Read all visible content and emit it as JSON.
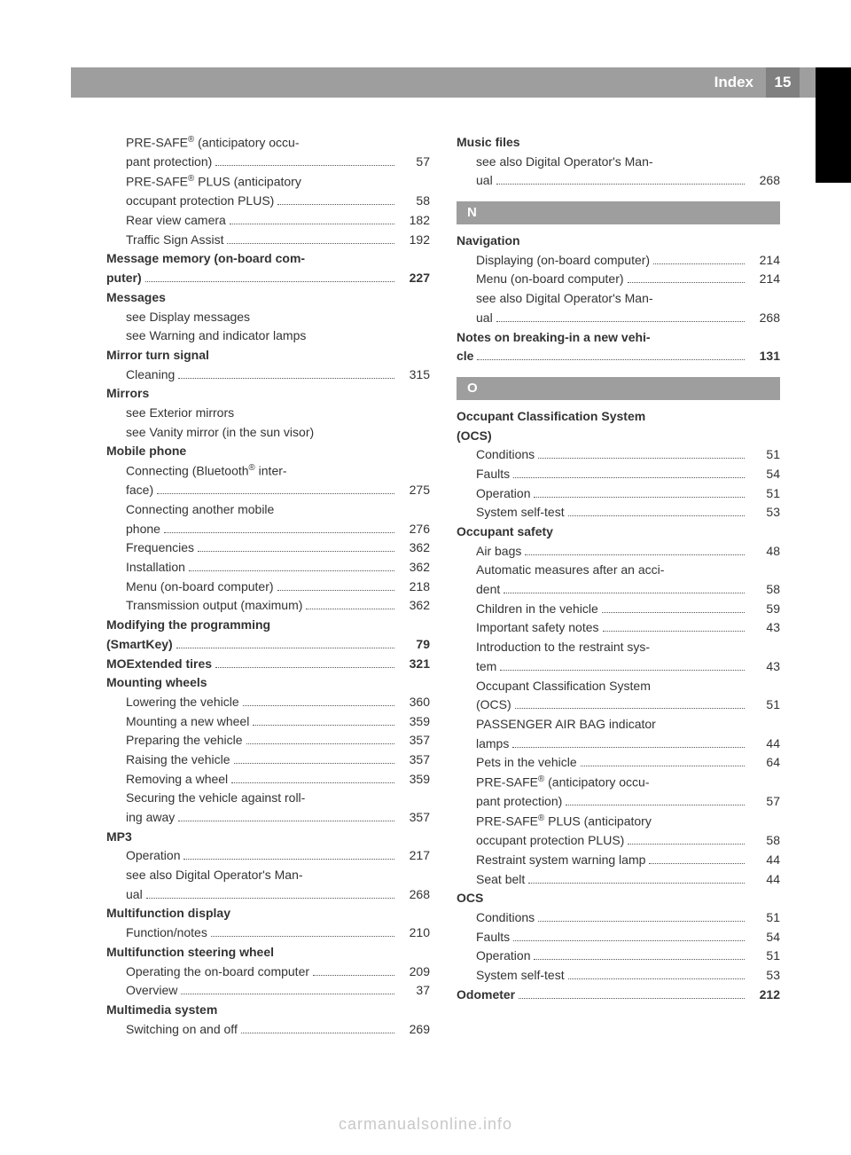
{
  "header": {
    "title": "Index",
    "page": "15"
  },
  "footer": "carmanualsonline.info",
  "left": [
    {
      "type": "entry",
      "indent": 1,
      "bold": false,
      "label": "PRE-SAFE® (anticipatory occu-"
    },
    {
      "type": "entry",
      "indent": 1,
      "bold": false,
      "label": "pant protection)",
      "page": "57"
    },
    {
      "type": "entry",
      "indent": 1,
      "bold": false,
      "label": "PRE-SAFE® PLUS (anticipatory"
    },
    {
      "type": "entry",
      "indent": 1,
      "bold": false,
      "label": "occupant protection PLUS)",
      "page": "58"
    },
    {
      "type": "entry",
      "indent": 1,
      "bold": false,
      "label": "Rear view camera",
      "page": "182"
    },
    {
      "type": "entry",
      "indent": 1,
      "bold": false,
      "label": "Traffic Sign Assist",
      "page": "192"
    },
    {
      "type": "entry",
      "indent": 0,
      "bold": true,
      "label": "Message memory (on-board com-"
    },
    {
      "type": "entry",
      "indent": 0,
      "bold": true,
      "label": "puter)",
      "page": "227"
    },
    {
      "type": "entry",
      "indent": 0,
      "bold": true,
      "label": "Messages"
    },
    {
      "type": "plain",
      "indent": 1,
      "label": "see Display messages"
    },
    {
      "type": "plain",
      "indent": 1,
      "label": "see Warning and indicator lamps"
    },
    {
      "type": "entry",
      "indent": 0,
      "bold": true,
      "label": "Mirror turn signal"
    },
    {
      "type": "entry",
      "indent": 1,
      "bold": false,
      "label": "Cleaning",
      "page": "315"
    },
    {
      "type": "entry",
      "indent": 0,
      "bold": true,
      "label": "Mirrors"
    },
    {
      "type": "plain",
      "indent": 1,
      "label": "see Exterior mirrors"
    },
    {
      "type": "plain",
      "indent": 1,
      "label": "see Vanity mirror (in the sun visor)"
    },
    {
      "type": "entry",
      "indent": 0,
      "bold": true,
      "label": "Mobile phone"
    },
    {
      "type": "entry",
      "indent": 1,
      "bold": false,
      "label": "Connecting (Bluetooth® inter-"
    },
    {
      "type": "entry",
      "indent": 1,
      "bold": false,
      "label": "face)",
      "page": "275"
    },
    {
      "type": "entry",
      "indent": 1,
      "bold": false,
      "label": "Connecting another mobile"
    },
    {
      "type": "entry",
      "indent": 1,
      "bold": false,
      "label": "phone",
      "page": "276"
    },
    {
      "type": "entry",
      "indent": 1,
      "bold": false,
      "label": "Frequencies",
      "page": "362"
    },
    {
      "type": "entry",
      "indent": 1,
      "bold": false,
      "label": "Installation",
      "page": "362"
    },
    {
      "type": "entry",
      "indent": 1,
      "bold": false,
      "label": "Menu (on-board computer)",
      "page": "218"
    },
    {
      "type": "entry",
      "indent": 1,
      "bold": false,
      "label": "Transmission output (maximum)",
      "page": "362"
    },
    {
      "type": "entry",
      "indent": 0,
      "bold": true,
      "label": "Modifying the programming"
    },
    {
      "type": "entry",
      "indent": 0,
      "bold": true,
      "label": "(SmartKey)",
      "page": "79"
    },
    {
      "type": "entry",
      "indent": 0,
      "bold": true,
      "label": "MOExtended tires",
      "page": "321"
    },
    {
      "type": "entry",
      "indent": 0,
      "bold": true,
      "label": "Mounting wheels"
    },
    {
      "type": "entry",
      "indent": 1,
      "bold": false,
      "label": "Lowering the vehicle",
      "page": "360"
    },
    {
      "type": "entry",
      "indent": 1,
      "bold": false,
      "label": "Mounting a new wheel",
      "page": "359"
    },
    {
      "type": "entry",
      "indent": 1,
      "bold": false,
      "label": "Preparing the vehicle",
      "page": "357"
    },
    {
      "type": "entry",
      "indent": 1,
      "bold": false,
      "label": "Raising the vehicle",
      "page": "357"
    },
    {
      "type": "entry",
      "indent": 1,
      "bold": false,
      "label": "Removing a wheel",
      "page": "359"
    },
    {
      "type": "entry",
      "indent": 1,
      "bold": false,
      "label": "Securing the vehicle against roll-"
    },
    {
      "type": "entry",
      "indent": 1,
      "bold": false,
      "label": "ing away",
      "page": "357"
    },
    {
      "type": "entry",
      "indent": 0,
      "bold": true,
      "label": "MP3"
    },
    {
      "type": "entry",
      "indent": 1,
      "bold": false,
      "label": "Operation",
      "page": "217"
    },
    {
      "type": "entry",
      "indent": 1,
      "bold": false,
      "label": "see also Digital Operator's Man-"
    },
    {
      "type": "entry",
      "indent": 1,
      "bold": false,
      "label": "ual",
      "page": "268"
    },
    {
      "type": "entry",
      "indent": 0,
      "bold": true,
      "label": "Multifunction display"
    },
    {
      "type": "entry",
      "indent": 1,
      "bold": false,
      "label": "Function/notes",
      "page": "210"
    },
    {
      "type": "entry",
      "indent": 0,
      "bold": true,
      "label": "Multifunction steering wheel"
    },
    {
      "type": "entry",
      "indent": 1,
      "bold": false,
      "label": "Operating the on-board computer",
      "page": "209"
    },
    {
      "type": "entry",
      "indent": 1,
      "bold": false,
      "label": "Overview",
      "page": "37"
    },
    {
      "type": "entry",
      "indent": 0,
      "bold": true,
      "label": "Multimedia system"
    },
    {
      "type": "entry",
      "indent": 1,
      "bold": false,
      "label": "Switching on and off",
      "page": "269"
    }
  ],
  "right": [
    {
      "type": "entry",
      "indent": 0,
      "bold": true,
      "label": "Music files"
    },
    {
      "type": "entry",
      "indent": 1,
      "bold": false,
      "label": "see also Digital Operator's Man-"
    },
    {
      "type": "entry",
      "indent": 1,
      "bold": false,
      "label": "ual",
      "page": "268"
    },
    {
      "type": "section",
      "label": "N"
    },
    {
      "type": "entry",
      "indent": 0,
      "bold": true,
      "label": "Navigation"
    },
    {
      "type": "entry",
      "indent": 1,
      "bold": false,
      "label": "Displaying (on-board computer)",
      "page": "214"
    },
    {
      "type": "entry",
      "indent": 1,
      "bold": false,
      "label": "Menu (on-board computer)",
      "page": "214"
    },
    {
      "type": "entry",
      "indent": 1,
      "bold": false,
      "label": "see also Digital Operator's Man-"
    },
    {
      "type": "entry",
      "indent": 1,
      "bold": false,
      "label": "ual",
      "page": "268"
    },
    {
      "type": "entry",
      "indent": 0,
      "bold": true,
      "label": "Notes on breaking-in a new vehi-"
    },
    {
      "type": "entry",
      "indent": 0,
      "bold": true,
      "label": "cle",
      "page": "131"
    },
    {
      "type": "section",
      "label": "O"
    },
    {
      "type": "entry",
      "indent": 0,
      "bold": true,
      "label": "Occupant Classification System"
    },
    {
      "type": "entry",
      "indent": 0,
      "bold": true,
      "label": "(OCS)"
    },
    {
      "type": "entry",
      "indent": 1,
      "bold": false,
      "label": "Conditions",
      "page": "51"
    },
    {
      "type": "entry",
      "indent": 1,
      "bold": false,
      "label": "Faults",
      "page": "54"
    },
    {
      "type": "entry",
      "indent": 1,
      "bold": false,
      "label": "Operation",
      "page": "51"
    },
    {
      "type": "entry",
      "indent": 1,
      "bold": false,
      "label": "System self-test",
      "page": "53"
    },
    {
      "type": "entry",
      "indent": 0,
      "bold": true,
      "label": "Occupant safety"
    },
    {
      "type": "entry",
      "indent": 1,
      "bold": false,
      "label": "Air bags",
      "page": "48"
    },
    {
      "type": "entry",
      "indent": 1,
      "bold": false,
      "label": "Automatic measures after an acci-"
    },
    {
      "type": "entry",
      "indent": 1,
      "bold": false,
      "label": "dent",
      "page": "58"
    },
    {
      "type": "entry",
      "indent": 1,
      "bold": false,
      "label": "Children in the vehicle",
      "page": "59"
    },
    {
      "type": "entry",
      "indent": 1,
      "bold": false,
      "label": "Important safety notes",
      "page": "43"
    },
    {
      "type": "entry",
      "indent": 1,
      "bold": false,
      "label": "Introduction to the restraint sys-"
    },
    {
      "type": "entry",
      "indent": 1,
      "bold": false,
      "label": "tem",
      "page": "43"
    },
    {
      "type": "entry",
      "indent": 1,
      "bold": false,
      "label": "Occupant Classification System"
    },
    {
      "type": "entry",
      "indent": 1,
      "bold": false,
      "label": "(OCS)",
      "page": "51"
    },
    {
      "type": "entry",
      "indent": 1,
      "bold": false,
      "label": "PASSENGER AIR BAG indicator"
    },
    {
      "type": "entry",
      "indent": 1,
      "bold": false,
      "label": "lamps",
      "page": "44"
    },
    {
      "type": "entry",
      "indent": 1,
      "bold": false,
      "label": "Pets in the vehicle",
      "page": "64"
    },
    {
      "type": "entry",
      "indent": 1,
      "bold": false,
      "label": "PRE-SAFE® (anticipatory occu-"
    },
    {
      "type": "entry",
      "indent": 1,
      "bold": false,
      "label": "pant protection)",
      "page": "57"
    },
    {
      "type": "entry",
      "indent": 1,
      "bold": false,
      "label": "PRE-SAFE® PLUS (anticipatory"
    },
    {
      "type": "entry",
      "indent": 1,
      "bold": false,
      "label": "occupant protection PLUS)",
      "page": "58"
    },
    {
      "type": "entry",
      "indent": 1,
      "bold": false,
      "label": "Restraint system warning lamp",
      "page": "44"
    },
    {
      "type": "entry",
      "indent": 1,
      "bold": false,
      "label": "Seat belt",
      "page": "44"
    },
    {
      "type": "entry",
      "indent": 0,
      "bold": true,
      "label": "OCS"
    },
    {
      "type": "entry",
      "indent": 1,
      "bold": false,
      "label": "Conditions",
      "page": "51"
    },
    {
      "type": "entry",
      "indent": 1,
      "bold": false,
      "label": "Faults",
      "page": "54"
    },
    {
      "type": "entry",
      "indent": 1,
      "bold": false,
      "label": "Operation",
      "page": "51"
    },
    {
      "type": "entry",
      "indent": 1,
      "bold": false,
      "label": "System self-test",
      "page": "53"
    },
    {
      "type": "entry",
      "indent": 0,
      "bold": true,
      "label": "Odometer",
      "page": "212"
    }
  ]
}
